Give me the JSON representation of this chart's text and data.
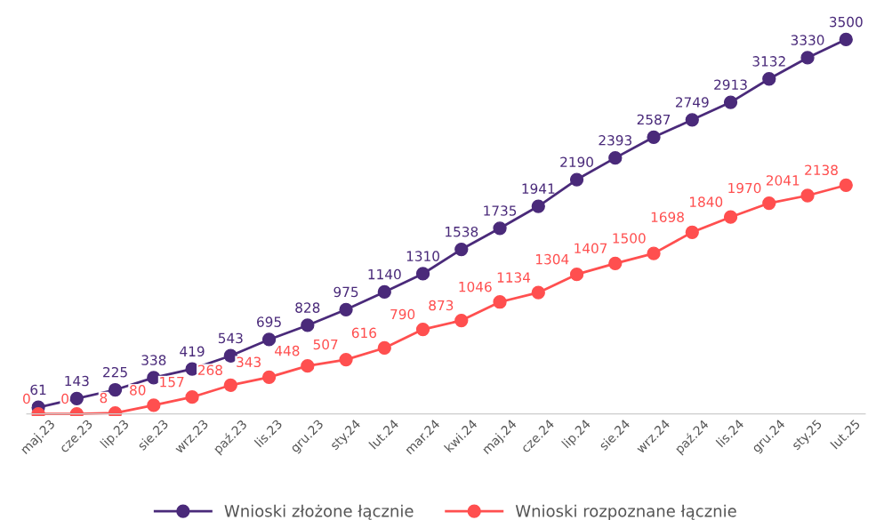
{
  "chart_data": {
    "type": "line",
    "categories": [
      "maj.23",
      "cze.23",
      "lip.23",
      "sie.23",
      "wrz.23",
      "paź.23",
      "lis.23",
      "gru.23",
      "sty.24",
      "lut.24",
      "mar.24",
      "kwi.24",
      "maj.24",
      "cze.24",
      "lip.24",
      "sie.24",
      "wrz.24",
      "paź.24",
      "lis.24",
      "gru.24",
      "sty.25",
      "lut.25"
    ],
    "series": [
      {
        "name": "Wnioski złożone łącznie",
        "color": "#4a2a7a",
        "values": [
          61,
          143,
          225,
          338,
          419,
          543,
          695,
          828,
          975,
          1140,
          1310,
          1538,
          1735,
          1941,
          2190,
          2393,
          2587,
          2749,
          2913,
          3132,
          3330,
          3500
        ]
      },
      {
        "name": "Wnioski rozpoznane łącznie",
        "color": "#ff4f4f",
        "values": [
          0,
          0,
          8,
          80,
          157,
          268,
          343,
          448,
          507,
          616,
          790,
          873,
          1046,
          1134,
          1304,
          1407,
          1500,
          1698,
          1840,
          1970,
          2041,
          2138
        ]
      }
    ],
    "marker": "circle",
    "line_style": "solid",
    "data_labels": true,
    "legend": "bottom",
    "grid": false,
    "tick_labels": "x"
  }
}
